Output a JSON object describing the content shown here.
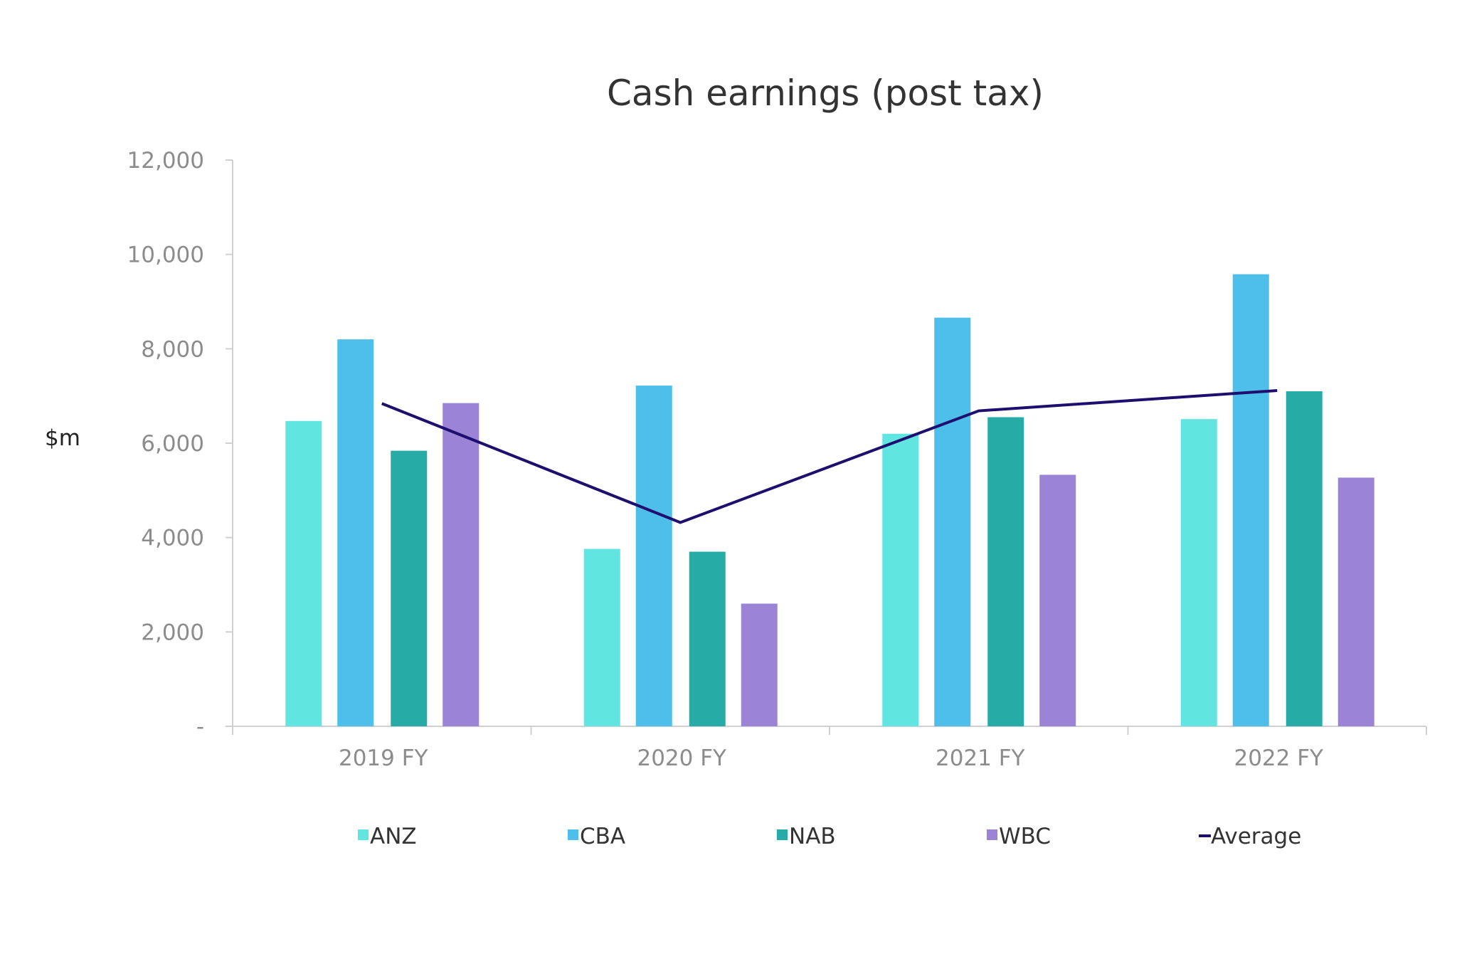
{
  "chart_data": {
    "type": "bar",
    "title": "Cash earnings (post tax)",
    "ylabel": "$m",
    "xlabel": "",
    "ylim": [
      0,
      12000
    ],
    "yticks": [
      0,
      2000,
      4000,
      6000,
      8000,
      10000,
      12000
    ],
    "ytick_labels": [
      "-",
      "2,000",
      "4,000",
      "6,000",
      "8,000",
      "10,000",
      "12,000"
    ],
    "categories": [
      "2019 FY",
      "2020 FY",
      "2021 FY",
      "2022 FY"
    ],
    "grid": false,
    "legend_position": "bottom",
    "series": [
      {
        "name": "ANZ",
        "type": "bar",
        "color": "#61E5E0",
        "values": [
          6470,
          3760,
          6200,
          6510
        ]
      },
      {
        "name": "CBA",
        "type": "bar",
        "color": "#4EBEEA",
        "values": [
          8200,
          7220,
          8660,
          9580
        ]
      },
      {
        "name": "NAB",
        "type": "bar",
        "color": "#26ABA6",
        "values": [
          5840,
          3700,
          6550,
          7100
        ]
      },
      {
        "name": "WBC",
        "type": "bar",
        "color": "#9B84D6",
        "values": [
          6850,
          2600,
          5330,
          5270
        ]
      },
      {
        "name": "Average",
        "type": "line",
        "color": "#1E0E6E",
        "values": [
          6840,
          4320,
          6685,
          7115
        ]
      }
    ]
  }
}
